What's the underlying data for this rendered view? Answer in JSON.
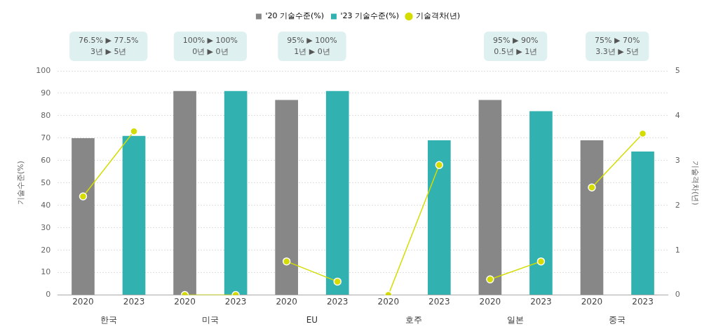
{
  "chart_data": {
    "type": "bar",
    "categories": [
      "2020",
      "2023",
      "2020",
      "2023",
      "2020",
      "2023",
      "2020",
      "2023",
      "2020",
      "2023",
      "2020",
      "2023"
    ],
    "series": [
      {
        "name": "'20 기술수준(%)",
        "color": "#878787",
        "values": [
          70,
          null,
          91,
          null,
          87,
          null,
          null,
          null,
          87,
          null,
          69,
          null
        ]
      },
      {
        "name": "'23 기술수준(%)",
        "color": "#31b2b0",
        "values": [
          null,
          71,
          null,
          91,
          null,
          91,
          null,
          69,
          null,
          82,
          null,
          64
        ]
      },
      {
        "name": "기술격차(년)",
        "type": "line",
        "axis": "y2",
        "color": "#d4dc00",
        "values": [
          2.2,
          3.65,
          0,
          0,
          0.75,
          0.3,
          0,
          2.9,
          0.35,
          0.75,
          2.4,
          3.6
        ]
      }
    ],
    "ylabel": "기술수준(%)",
    "y2label": "기술격차(년)",
    "ylim": [
      0,
      100
    ],
    "yticks": [
      0,
      10,
      20,
      30,
      40,
      50,
      60,
      70,
      80,
      90,
      100
    ],
    "y2lim": [
      0,
      5
    ],
    "y2ticks": [
      0,
      1,
      2,
      3,
      4,
      5
    ],
    "grid": "y",
    "legend": "top",
    "marker": "circle",
    "annotations": [
      "한국",
      "미국",
      "EU",
      "호주",
      "일본",
      "중국",
      "76.5% ▶ 77.5%\n3년 ▶ 5년",
      "100% ▶ 100%\n0년 ▶ 0년",
      "95% ▶ 100%\n1년 ▶ 0년",
      null,
      "95% ▶ 90%\n0.5년 ▶ 1년",
      "75% ▶ 70%\n3.3년 ▶ 5년"
    ]
  }
}
